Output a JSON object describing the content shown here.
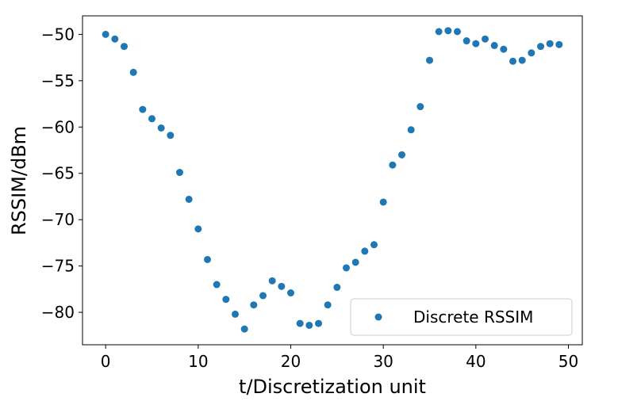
{
  "chart_data": {
    "type": "scatter",
    "title": "",
    "xlabel": "t/Discretization unit",
    "ylabel": "RSSIM/dBm",
    "xlim": [
      -2.5,
      51.5
    ],
    "ylim": [
      -83.5,
      -48
    ],
    "xticks": [
      0,
      10,
      20,
      30,
      40,
      50
    ],
    "yticks": [
      -80,
      -75,
      -70,
      -65,
      -60,
      -55,
      -50
    ],
    "xtick_labels": [
      "0",
      "10",
      "20",
      "30",
      "40",
      "50"
    ],
    "ytick_labels": [
      "−80",
      "−75",
      "−70",
      "−65",
      "−60",
      "−55",
      "−50"
    ],
    "grid": false,
    "legend_position": "lower-right",
    "series": [
      {
        "name": "Discrete RSSIM",
        "color": "#1f77b4",
        "x": [
          0,
          1,
          2,
          3,
          4,
          5,
          6,
          7,
          8,
          9,
          10,
          11,
          12,
          13,
          14,
          15,
          16,
          17,
          18,
          19,
          20,
          21,
          22,
          23,
          24,
          25,
          26,
          27,
          28,
          29,
          30,
          31,
          32,
          33,
          34,
          35,
          36,
          37,
          38,
          39,
          40,
          41,
          42,
          43,
          44,
          45,
          46,
          47,
          48,
          49
        ],
        "y": [
          -50.0,
          -50.5,
          -51.3,
          -54.1,
          -58.1,
          -59.1,
          -60.1,
          -60.9,
          -64.9,
          -67.8,
          -71.0,
          -74.3,
          -77.0,
          -78.6,
          -80.2,
          -81.8,
          -79.2,
          -78.2,
          -76.6,
          -77.2,
          -77.9,
          -81.2,
          -81.4,
          -81.2,
          -79.2,
          -77.3,
          -75.2,
          -74.6,
          -73.4,
          -72.7,
          -68.1,
          -64.1,
          -63.0,
          -60.3,
          -57.8,
          -52.8,
          -49.7,
          -49.6,
          -49.7,
          -50.7,
          -51.0,
          -50.5,
          -51.2,
          -51.6,
          -52.9,
          -52.8,
          -52.0,
          -51.3,
          -51.0,
          -51.1
        ]
      }
    ]
  }
}
